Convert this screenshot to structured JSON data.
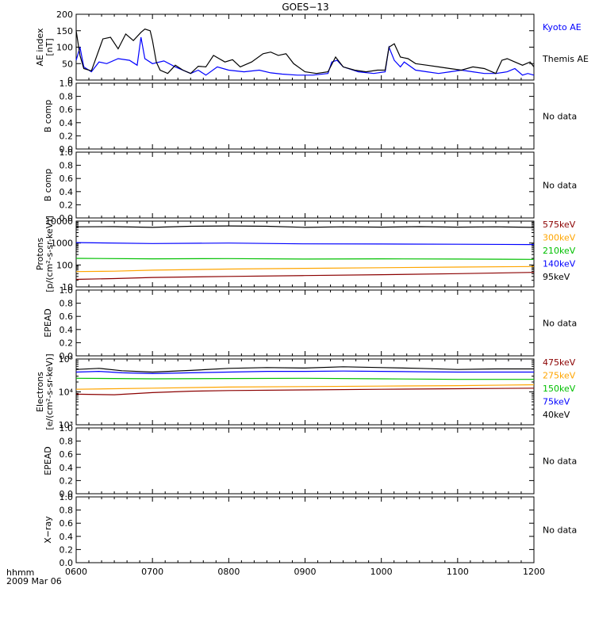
{
  "figure": {
    "title": "GOES−13",
    "time_axis_label": "hhmm",
    "date_label": "2009 Mar 06",
    "time_ticks": [
      "0600",
      "0700",
      "0800",
      "0900",
      "1000",
      "1100",
      "1200"
    ]
  },
  "chart_data": [
    {
      "type": "line",
      "id": "ae",
      "ylabel": [
        "AE index",
        "[nT]"
      ],
      "ylim": [
        0,
        200
      ],
      "y_ticks": [
        "0",
        "50",
        "100",
        "150",
        "200"
      ],
      "x_range": [
        "0600",
        "1200"
      ],
      "legend": [
        {
          "text": "Kyoto AE",
          "color": "#0000ff"
        },
        {
          "text": "Themis AE",
          "color": "#000000"
        }
      ],
      "series": [
        {
          "name": "Kyoto AE",
          "color": "#0000ff",
          "points": [
            [
              6.0,
              60
            ],
            [
              6.05,
              100
            ],
            [
              6.1,
              40
            ],
            [
              6.2,
              25
            ],
            [
              6.3,
              55
            ],
            [
              6.4,
              50
            ],
            [
              6.55,
              65
            ],
            [
              6.7,
              60
            ],
            [
              6.8,
              45
            ],
            [
              6.85,
              130
            ],
            [
              6.9,
              65
            ],
            [
              7.0,
              50
            ],
            [
              7.15,
              58
            ],
            [
              7.3,
              40
            ],
            [
              7.5,
              20
            ],
            [
              7.6,
              30
            ],
            [
              7.7,
              15
            ],
            [
              7.85,
              40
            ],
            [
              8.0,
              30
            ],
            [
              8.2,
              25
            ],
            [
              8.4,
              30
            ],
            [
              8.55,
              22
            ],
            [
              8.7,
              18
            ],
            [
              8.9,
              15
            ],
            [
              9.1,
              15
            ],
            [
              9.3,
              20
            ],
            [
              9.35,
              55
            ],
            [
              9.42,
              60
            ],
            [
              9.5,
              40
            ],
            [
              9.7,
              25
            ],
            [
              9.9,
              20
            ],
            [
              10.05,
              25
            ],
            [
              10.1,
              100
            ],
            [
              10.17,
              60
            ],
            [
              10.25,
              40
            ],
            [
              10.3,
              55
            ],
            [
              10.45,
              30
            ],
            [
              10.6,
              25
            ],
            [
              10.75,
              20
            ],
            [
              10.9,
              25
            ],
            [
              11.05,
              30
            ],
            [
              11.2,
              25
            ],
            [
              11.35,
              20
            ],
            [
              11.5,
              20
            ],
            [
              11.65,
              25
            ],
            [
              11.75,
              35
            ],
            [
              11.85,
              15
            ],
            [
              11.92,
              20
            ],
            [
              12.0,
              15
            ]
          ]
        },
        {
          "name": "Themis AE",
          "color": "#000000",
          "points": [
            [
              6.0,
              150
            ],
            [
              6.05,
              75
            ],
            [
              6.1,
              35
            ],
            [
              6.2,
              28
            ],
            [
              6.35,
              125
            ],
            [
              6.45,
              130
            ],
            [
              6.55,
              95
            ],
            [
              6.65,
              140
            ],
            [
              6.75,
              120
            ],
            [
              6.85,
              145
            ],
            [
              6.9,
              155
            ],
            [
              6.97,
              150
            ],
            [
              7.0,
              120
            ],
            [
              7.05,
              55
            ],
            [
              7.1,
              30
            ],
            [
              7.2,
              20
            ],
            [
              7.3,
              45
            ],
            [
              7.4,
              30
            ],
            [
              7.5,
              20
            ],
            [
              7.6,
              42
            ],
            [
              7.7,
              40
            ],
            [
              7.8,
              75
            ],
            [
              7.95,
              55
            ],
            [
              8.05,
              62
            ],
            [
              8.15,
              40
            ],
            [
              8.3,
              55
            ],
            [
              8.45,
              80
            ],
            [
              8.55,
              85
            ],
            [
              8.65,
              75
            ],
            [
              8.75,
              80
            ],
            [
              8.85,
              50
            ],
            [
              9.0,
              25
            ],
            [
              9.15,
              20
            ],
            [
              9.3,
              25
            ],
            [
              9.4,
              70
            ],
            [
              9.5,
              40
            ],
            [
              9.65,
              30
            ],
            [
              9.8,
              25
            ],
            [
              9.95,
              30
            ],
            [
              10.05,
              30
            ],
            [
              10.1,
              100
            ],
            [
              10.17,
              110
            ],
            [
              10.25,
              70
            ],
            [
              10.35,
              65
            ],
            [
              10.45,
              50
            ],
            [
              10.6,
              45
            ],
            [
              10.75,
              40
            ],
            [
              10.9,
              35
            ],
            [
              11.05,
              30
            ],
            [
              11.2,
              40
            ],
            [
              11.35,
              35
            ],
            [
              11.5,
              20
            ],
            [
              11.58,
              60
            ],
            [
              11.65,
              65
            ],
            [
              11.75,
              55
            ],
            [
              11.85,
              45
            ],
            [
              11.95,
              55
            ],
            [
              12.0,
              40
            ]
          ]
        }
      ]
    },
    {
      "type": "line",
      "id": "b1",
      "ylabel": [
        "B comp"
      ],
      "ylim": [
        0,
        1
      ],
      "y_ticks": [
        "0.0",
        "0.2",
        "0.4",
        "0.6",
        "0.8",
        "1.0"
      ],
      "note": "No data",
      "series": []
    },
    {
      "type": "line",
      "id": "b2",
      "ylabel": [
        "B comp"
      ],
      "ylim": [
        0,
        1
      ],
      "y_ticks": [
        "0.0",
        "0.2",
        "0.4",
        "0.6",
        "0.8",
        "1.0"
      ],
      "note": "No data",
      "series": []
    },
    {
      "type": "line",
      "id": "protons",
      "ylabel": [
        "Protons",
        "[p/(cm²-s-sr-keV)]"
      ],
      "yscale": "log",
      "ylim": [
        10,
        10000
      ],
      "y_ticks": [
        "10",
        "100",
        "1000",
        "10000"
      ],
      "legend": [
        {
          "text": "575keV",
          "color": "#8b0000"
        },
        {
          "text": "300keV",
          "color": "#ffa500"
        },
        {
          "text": "210keV",
          "color": "#00c000"
        },
        {
          "text": "140keV",
          "color": "#0000ff"
        },
        {
          "text": "95keV",
          "color": "#000000"
        }
      ],
      "series": [
        {
          "name": "95keV",
          "color": "#000000",
          "points": [
            [
              6.0,
              5500
            ],
            [
              6.5,
              5600
            ],
            [
              7.0,
              5200
            ],
            [
              7.5,
              5800
            ],
            [
              8.0,
              6000
            ],
            [
              8.5,
              5800
            ],
            [
              9.0,
              5200
            ],
            [
              9.5,
              5500
            ],
            [
              10.0,
              5300
            ],
            [
              10.5,
              5600
            ],
            [
              11.0,
              5300
            ],
            [
              11.5,
              5500
            ],
            [
              12.0,
              5200
            ]
          ]
        },
        {
          "name": "140keV",
          "color": "#0000ff",
          "points": [
            [
              6.0,
              1050
            ],
            [
              7.0,
              950
            ],
            [
              8.0,
              1000
            ],
            [
              9.0,
              920
            ],
            [
              10.0,
              900
            ],
            [
              11.0,
              880
            ],
            [
              12.0,
              850
            ]
          ]
        },
        {
          "name": "210keV",
          "color": "#00c000",
          "points": [
            [
              6.0,
              200
            ],
            [
              7.0,
              190
            ],
            [
              8.0,
              195
            ],
            [
              9.0,
              185
            ],
            [
              10.0,
              190
            ],
            [
              11.0,
              185
            ],
            [
              12.0,
              180
            ]
          ]
        },
        {
          "name": "300keV",
          "color": "#ffa500",
          "points": [
            [
              6.0,
              50
            ],
            [
              6.5,
              52
            ],
            [
              7.0,
              58
            ],
            [
              8.0,
              65
            ],
            [
              9.0,
              70
            ],
            [
              10.0,
              75
            ],
            [
              11.0,
              80
            ],
            [
              12.0,
              85
            ]
          ]
        },
        {
          "name": "575keV",
          "color": "#8b0000",
          "points": [
            [
              6.0,
              22
            ],
            [
              6.5,
              24
            ],
            [
              7.0,
              27
            ],
            [
              8.0,
              30
            ],
            [
              9.0,
              33
            ],
            [
              10.0,
              36
            ],
            [
              11.0,
              40
            ],
            [
              12.0,
              46
            ]
          ]
        }
      ]
    },
    {
      "type": "line",
      "id": "epead1",
      "ylabel": [
        "EPEAD"
      ],
      "ylim": [
        0,
        1
      ],
      "y_ticks": [
        "0.0",
        "0.2",
        "0.4",
        "0.6",
        "0.8",
        "1.0"
      ],
      "note": "No data",
      "series": []
    },
    {
      "type": "line",
      "id": "electrons",
      "ylabel": [
        "Electrons",
        "[e/(cm²-s-sr-keV)]"
      ],
      "yscale": "log",
      "ylim": [
        1000,
        100000
      ],
      "y_ticks": [
        "10³",
        "10⁴",
        "10⁵"
      ],
      "legend": [
        {
          "text": "475keV",
          "color": "#8b0000"
        },
        {
          "text": "275keV",
          "color": "#ffa500"
        },
        {
          "text": "150keV",
          "color": "#00c000"
        },
        {
          "text": "75keV",
          "color": "#0000ff"
        },
        {
          "text": "40keV",
          "color": "#000000"
        }
      ],
      "series": [
        {
          "name": "40keV",
          "color": "#000000",
          "points": [
            [
              6.0,
              48000
            ],
            [
              6.3,
              52000
            ],
            [
              6.6,
              44000
            ],
            [
              7.0,
              40000
            ],
            [
              7.5,
              45000
            ],
            [
              8.0,
              52000
            ],
            [
              8.5,
              55000
            ],
            [
              9.0,
              53000
            ],
            [
              9.5,
              58000
            ],
            [
              10.0,
              55000
            ],
            [
              10.5,
              52000
            ],
            [
              11.0,
              48000
            ],
            [
              11.5,
              50000
            ],
            [
              12.0,
              50000
            ]
          ]
        },
        {
          "name": "75keV",
          "color": "#0000ff",
          "points": [
            [
              6.0,
              40000
            ],
            [
              6.3,
              42000
            ],
            [
              6.6,
              38000
            ],
            [
              7.0,
              36000
            ],
            [
              7.5,
              38000
            ],
            [
              8.0,
              40000
            ],
            [
              8.5,
              42000
            ],
            [
              9.0,
              42000
            ],
            [
              9.5,
              43000
            ],
            [
              10.0,
              42000
            ],
            [
              10.5,
              41000
            ],
            [
              11.0,
              40000
            ],
            [
              11.5,
              40000
            ],
            [
              12.0,
              40000
            ]
          ]
        },
        {
          "name": "150keV",
          "color": "#00c000",
          "points": [
            [
              6.0,
              26000
            ],
            [
              7.0,
              25000
            ],
            [
              8.0,
              25500
            ],
            [
              9.0,
              26000
            ],
            [
              10.0,
              25000
            ],
            [
              11.0,
              24000
            ],
            [
              12.0,
              24000
            ]
          ]
        },
        {
          "name": "275keV",
          "color": "#ffa500",
          "points": [
            [
              6.0,
              12000
            ],
            [
              7.0,
              13000
            ],
            [
              8.0,
              14000
            ],
            [
              9.0,
              14500
            ],
            [
              10.0,
              15000
            ],
            [
              11.0,
              15500
            ],
            [
              12.0,
              16500
            ]
          ]
        },
        {
          "name": "475keV",
          "color": "#8b0000",
          "points": [
            [
              6.0,
              8500
            ],
            [
              6.5,
              8200
            ],
            [
              7.0,
              9500
            ],
            [
              7.5,
              10500
            ],
            [
              8.0,
              11000
            ],
            [
              9.0,
              11500
            ],
            [
              10.0,
              12000
            ],
            [
              11.0,
              12500
            ],
            [
              12.0,
              13000
            ]
          ]
        }
      ]
    },
    {
      "type": "line",
      "id": "epead2",
      "ylabel": [
        "EPEAD"
      ],
      "ylim": [
        0,
        1
      ],
      "y_ticks": [
        "0.0",
        "0.2",
        "0.4",
        "0.6",
        "0.8",
        "1.0"
      ],
      "note": "No data",
      "series": []
    },
    {
      "type": "line",
      "id": "xray",
      "ylabel": [
        "X−ray"
      ],
      "ylim": [
        0,
        1
      ],
      "y_ticks": [
        "0.0",
        "0.2",
        "0.4",
        "0.6",
        "0.8",
        "1.0"
      ],
      "note": "No data",
      "series": []
    }
  ]
}
